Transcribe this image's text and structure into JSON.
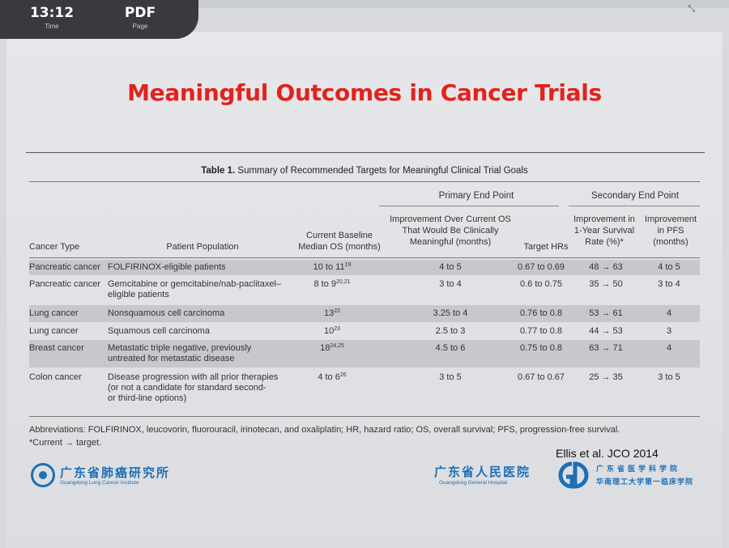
{
  "hud": {
    "time_value": "13:12",
    "time_label": "Time",
    "mode_value": "PDF",
    "mode_label": "Page"
  },
  "slide_title": "Meaningful Outcomes in Cancer Trials",
  "table": {
    "caption_label": "Table 1.",
    "caption_text": "Summary of Recommended Targets for Meaningful Clinical Trial Goals",
    "group_primary": "Primary End Point",
    "group_secondary": "Secondary End Point",
    "headers": {
      "cancer_type": "Cancer Type",
      "population": "Patient Population",
      "median_os": "Current Baseline\nMedian OS (months)",
      "improvement_os": "Improvement Over Current OS\nThat Would Be Clinically\nMeaningful (months)",
      "target_hr": "Target HRs",
      "survival": "Improvement in\n1-Year Survival\nRate (%)*",
      "pfs": "Improvement\nin PFS\n(months)"
    },
    "rows": [
      {
        "type": "Pancreatic cancer",
        "population": "FOLFIRINOX-eligible patients",
        "median": "10 to 11",
        "median_ref": "19",
        "improvement": "4 to 5",
        "hr": "0.67 to 0.69",
        "survival": "48 → 63",
        "pfs": "4 to 5"
      },
      {
        "type": "Pancreatic cancer",
        "population": "Gemcitabine or gemcitabine/nab-paclitaxel–\neligible patients",
        "median": "8 to 9",
        "median_ref": "20,21",
        "improvement": "3 to 4",
        "hr": "0.6 to 0.75",
        "survival": "35 → 50",
        "pfs": "3 to 4"
      },
      {
        "type": "Lung cancer",
        "population": "Nonsquamous cell carcinoma",
        "median": "13",
        "median_ref": "22",
        "improvement": "3.25 to 4",
        "hr": "0.76 to 0.8",
        "survival": "53 → 61",
        "pfs": "4"
      },
      {
        "type": "Lung cancer",
        "population": "Squamous cell carcinoma",
        "median": "10",
        "median_ref": "23",
        "improvement": "2.5 to 3",
        "hr": "0.77 to 0.8",
        "survival": "44 → 53",
        "pfs": "3"
      },
      {
        "type": "Breast cancer",
        "population": "Metastatic triple negative, previously\nuntreated for metastatic disease",
        "median": "18",
        "median_ref": "24,25",
        "improvement": "4.5 to 6",
        "hr": "0.75 to 0.8",
        "survival": "63 → 71",
        "pfs": "4"
      },
      {
        "type": "Colon cancer",
        "population": "Disease progression with all prior therapies\n(or not a candidate for standard second-\nor third-line options)",
        "median": "4 to 6",
        "median_ref": "26",
        "improvement": "3 to 5",
        "hr": "0.67 to 0.67",
        "survival": "25 → 35",
        "pfs": "3 to 5"
      }
    ],
    "abbreviations": "Abbreviations: FOLFIRINOX, leucovorin, fluorouracil, irinotecan, and oxaliplatin; HR, hazard ratio; OS, overall survival; PFS, progression-free survival.",
    "footnote": "*Current → target."
  },
  "citation": "Ellis et al. JCO 2014",
  "logos": {
    "left_cn": "广东省肺癌研究所",
    "left_en": "Guangdong Lung Cancer Institute",
    "mid_cn": "广东省人民医院",
    "mid_en": "Guangdong General Hospital",
    "right_l1": "广东省医学科学院",
    "right_l2": "华南理工大学第一临床学院"
  },
  "colors": {
    "title_red": "#e3221c",
    "logo_blue": "#1d6fb7",
    "row_shade": "#c6c8cd"
  }
}
